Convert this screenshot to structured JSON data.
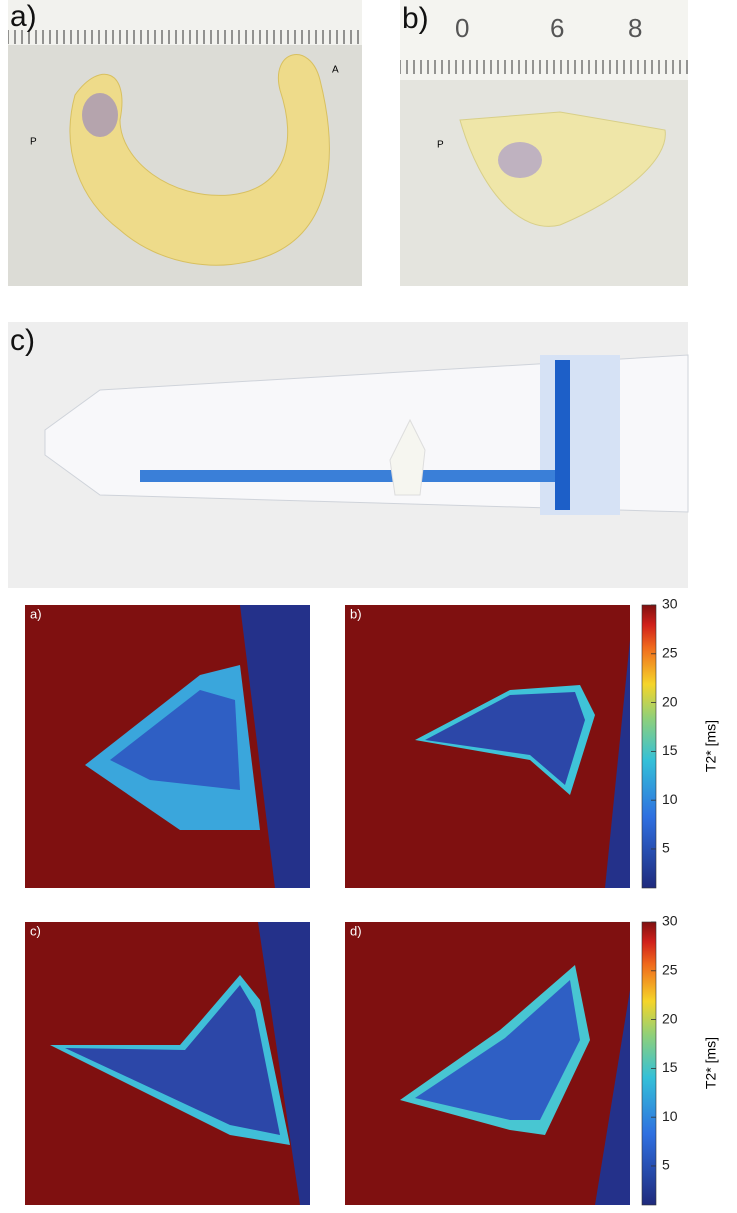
{
  "photos": [
    {
      "label": "a)",
      "annotations": [
        "P",
        "A"
      ]
    },
    {
      "label": "b)",
      "ruler_numbers": [
        "0",
        "6",
        "8"
      ],
      "annotations": [
        "P"
      ]
    },
    {
      "label": "c)"
    }
  ],
  "maps": [
    {
      "label": "a)"
    },
    {
      "label": "b)"
    },
    {
      "label": "c)"
    },
    {
      "label": "d)"
    }
  ],
  "colorbars": [
    {
      "label": "T2* [ms]",
      "limits": [
        1,
        30
      ],
      "ticks": [
        5,
        10,
        15,
        20,
        25,
        30
      ]
    },
    {
      "label": "T2* [ms]",
      "limits": [
        1,
        30
      ],
      "ticks": [
        5,
        10,
        15,
        20,
        25,
        30
      ]
    }
  ]
}
